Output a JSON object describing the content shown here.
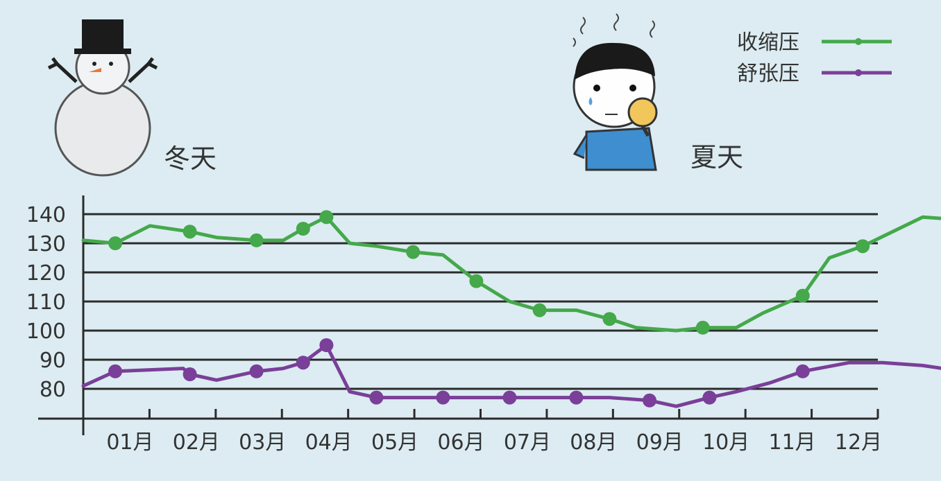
{
  "season_labels": {
    "winter": "冬天",
    "summer": "夏天"
  },
  "icons": {
    "winter": "snowman-icon",
    "summer": "sweating-person-with-fan-icon"
  },
  "colors": {
    "background": "#dcecf2",
    "systolic": "#45a84b",
    "diastolic": "#7a3f98",
    "axis": "#2b2b2b"
  },
  "chart_data": {
    "type": "line",
    "title": "",
    "xlabel": "",
    "ylabel": "",
    "ylim": [
      70,
      140
    ],
    "y_ticks": [
      140,
      130,
      120,
      110,
      100,
      90,
      80
    ],
    "x_tick_labels": [
      "01月",
      "02月",
      "03月",
      "04月",
      "05月",
      "06月",
      "07月",
      "08月",
      "09月",
      "10月",
      "11月",
      "12月"
    ],
    "grid": true,
    "legend_position": "top-right",
    "series": [
      {
        "name": "收缩压",
        "color": "#45a84b",
        "points": [
          [
            0,
            131
          ],
          [
            0.48,
            130
          ],
          [
            1,
            136
          ],
          [
            1.6,
            134
          ],
          [
            2,
            132
          ],
          [
            2.6,
            131
          ],
          [
            3,
            131
          ],
          [
            3.3,
            135
          ],
          [
            3.65,
            139
          ],
          [
            4,
            130
          ],
          [
            4.4,
            129
          ],
          [
            4.95,
            127
          ],
          [
            5.4,
            126
          ],
          [
            5.9,
            117
          ],
          [
            6.4,
            110
          ],
          [
            6.85,
            107
          ],
          [
            7.4,
            107
          ],
          [
            7.9,
            104
          ],
          [
            8.3,
            101
          ],
          [
            8.9,
            100
          ],
          [
            9.3,
            101
          ],
          [
            9.8,
            101
          ],
          [
            10.2,
            106
          ],
          [
            10.8,
            112
          ],
          [
            11.2,
            125
          ],
          [
            11.7,
            129
          ],
          [
            12.6,
            139
          ],
          [
            13.2,
            138
          ]
        ],
        "markers": [
          [
            0.48,
            130
          ],
          [
            1.6,
            134
          ],
          [
            2.6,
            131
          ],
          [
            3.3,
            135
          ],
          [
            3.65,
            139
          ],
          [
            4.95,
            127
          ],
          [
            5.9,
            117
          ],
          [
            6.85,
            107
          ],
          [
            7.9,
            104
          ],
          [
            9.3,
            101
          ],
          [
            10.8,
            112
          ],
          [
            11.7,
            129
          ],
          [
            13.2,
            138
          ]
        ]
      },
      {
        "name": "舒张压",
        "color": "#7a3f98",
        "points": [
          [
            0,
            81
          ],
          [
            0.48,
            86
          ],
          [
            1.5,
            87
          ],
          [
            1.6,
            85
          ],
          [
            2,
            83
          ],
          [
            2.6,
            86
          ],
          [
            3,
            87
          ],
          [
            3.3,
            89
          ],
          [
            3.65,
            95
          ],
          [
            4,
            79
          ],
          [
            4.4,
            77
          ],
          [
            4.95,
            77
          ],
          [
            5.9,
            77
          ],
          [
            6.4,
            77
          ],
          [
            6.85,
            77
          ],
          [
            7.9,
            77
          ],
          [
            8.5,
            76
          ],
          [
            8.9,
            74
          ],
          [
            9.4,
            77
          ],
          [
            9.8,
            79
          ],
          [
            10.3,
            82
          ],
          [
            10.8,
            86
          ],
          [
            11.5,
            89
          ],
          [
            12.0,
            89
          ],
          [
            12.6,
            88
          ],
          [
            13.2,
            86
          ]
        ],
        "markers": [
          [
            0.48,
            86
          ],
          [
            1.6,
            85
          ],
          [
            2.6,
            86
          ],
          [
            3.3,
            89
          ],
          [
            3.65,
            95
          ],
          [
            4.4,
            77
          ],
          [
            5.4,
            77
          ],
          [
            6.4,
            77
          ],
          [
            7.4,
            77
          ],
          [
            8.5,
            76
          ],
          [
            9.4,
            77
          ],
          [
            10.8,
            86
          ],
          [
            13.2,
            86
          ]
        ]
      }
    ]
  }
}
